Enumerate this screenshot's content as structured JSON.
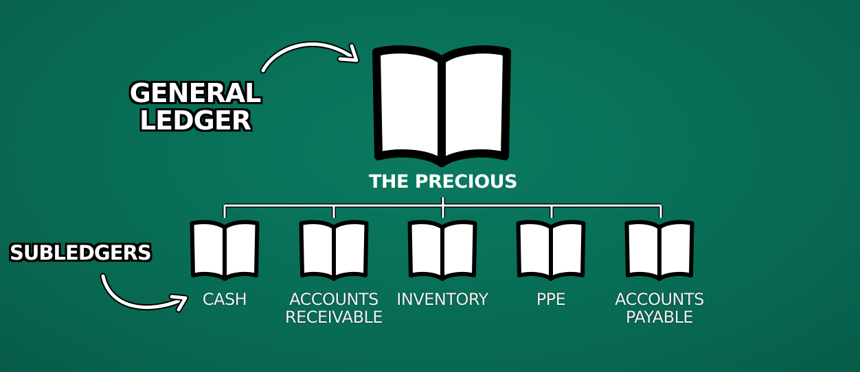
{
  "callouts": {
    "general_ledger": "GENERAL LEDGER",
    "subledgers": "SUBLEDGERS"
  },
  "main_book": {
    "label": "THE PRECIOUS"
  },
  "subledgers": [
    {
      "label": "CASH"
    },
    {
      "label": "ACCOUNTS RECEIVABLE"
    },
    {
      "label": "INVENTORY"
    },
    {
      "label": "PPE"
    },
    {
      "label": "ACCOUNTS PAYABLE"
    }
  ],
  "colors": {
    "background": "#086b54",
    "book_fill": "#ffffff",
    "outline": "#000000",
    "connector": "#ffffff"
  },
  "icons": {
    "main": "open-book-icon",
    "sub": "open-book-icon",
    "arrow": "curved-arrow-icon"
  }
}
